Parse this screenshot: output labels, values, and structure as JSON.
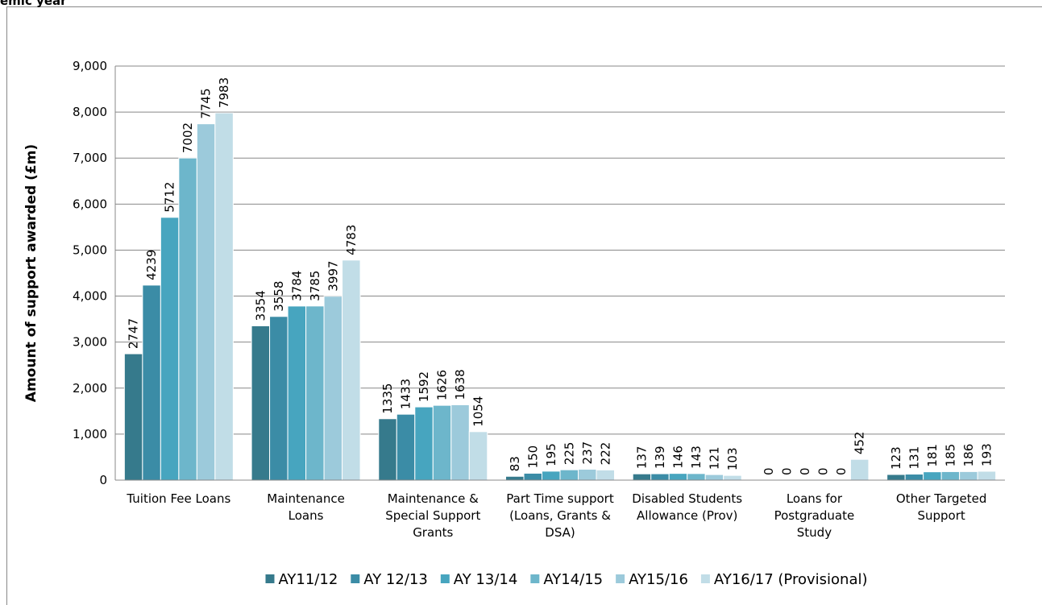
{
  "chart_data": {
    "type": "bar",
    "title": "emic year",
    "y_label": "Amount of support awarded (£m)",
    "categories": [
      "Tuition Fee Loans",
      "Maintenance Loans",
      "Maintenance & Special Support Grants",
      "Part Time support (Loans, Grants & DSA)",
      "Disabled Students Allowance (Prov)",
      "Loans for Postgraduate Study",
      "Other Targeted Support"
    ],
    "series": [
      {
        "name": "AY11/12",
        "color": "#367a8c",
        "values": [
          2747,
          3354,
          1335,
          83,
          137,
          0,
          123
        ]
      },
      {
        "name": "AY 12/13",
        "color": "#3b8ca6",
        "values": [
          4239,
          3558,
          1433,
          150,
          139,
          0,
          131
        ]
      },
      {
        "name": "AY 13/14",
        "color": "#47a5bf",
        "values": [
          5712,
          3784,
          1592,
          195,
          146,
          0,
          181
        ]
      },
      {
        "name": "AY14/15",
        "color": "#6db6cb",
        "values": [
          7002,
          3785,
          1626,
          225,
          143,
          0,
          185
        ]
      },
      {
        "name": "AY15/16",
        "color": "#9ccadb",
        "values": [
          7745,
          3997,
          1638,
          237,
          121,
          0,
          186
        ]
      },
      {
        "name": "AY16/17 (Provisional)",
        "color": "#c1dde7",
        "values": [
          7983,
          4783,
          1054,
          222,
          103,
          452,
          193
        ]
      }
    ],
    "ylim": [
      0,
      9000
    ],
    "yticks": [
      0,
      {
        "value": 1000,
        "label": "1,000"
      },
      {
        "value": 2000,
        "label": "2,000"
      },
      {
        "value": 3000,
        "label": "3,000"
      },
      {
        "value": 4000,
        "label": "4,000"
      },
      {
        "value": 5000,
        "label": "5,000"
      },
      {
        "value": 6000,
        "label": "6,000"
      },
      {
        "value": 7000,
        "label": "7,000"
      },
      {
        "value": 8000,
        "label": "8,000"
      },
      {
        "value": 9000,
        "label": "9,000"
      }
    ],
    "grid": true,
    "legend": "bottom"
  }
}
